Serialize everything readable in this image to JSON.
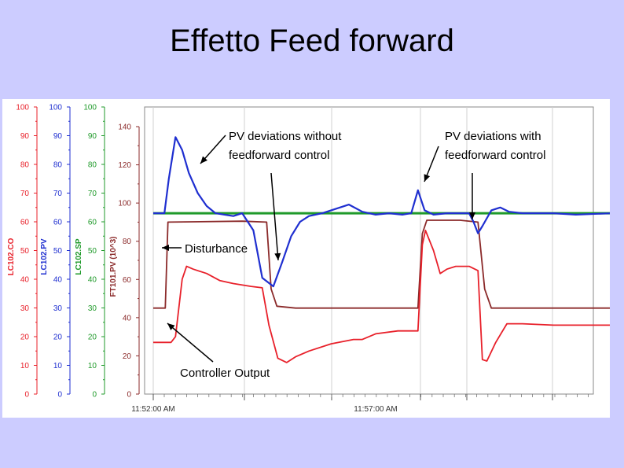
{
  "slide": {
    "title": "Effetto Feed forward"
  },
  "colors": {
    "background": "#ccccff",
    "co": "#e8202a",
    "pv": "#1f2fd0",
    "sp": "#1f9a2a",
    "ft": "#8b2a2a",
    "annotation": "#000000"
  },
  "chart_data": {
    "type": "line",
    "title": "",
    "x_axis": {
      "tick_labels": [
        "11:52:00 AM",
        "11:57:00 AM"
      ],
      "range_minutes": [
        0,
        10
      ]
    },
    "y_axes": [
      {
        "key": "co",
        "label": "LC102.CO",
        "range": [
          0,
          100
        ],
        "ticks": [
          0,
          10,
          20,
          30,
          40,
          50,
          60,
          70,
          80,
          90,
          100
        ]
      },
      {
        "key": "pv",
        "label": "LC102.PV",
        "range": [
          0,
          100
        ],
        "ticks": [
          0,
          10,
          20,
          30,
          40,
          50,
          60,
          70,
          80,
          90,
          100
        ]
      },
      {
        "key": "sp",
        "label": "LC102.SP",
        "range": [
          0,
          100
        ],
        "ticks": [
          0,
          10,
          20,
          30,
          40,
          50,
          60,
          70,
          80,
          90,
          100
        ]
      },
      {
        "key": "ft",
        "label": "FT101.PV (10^3)",
        "range": [
          0,
          140
        ],
        "ticks": [
          0,
          20,
          40,
          60,
          80,
          100,
          120,
          140
        ]
      }
    ],
    "series": [
      {
        "name": "LC102.SP",
        "axis": "sp",
        "color": "#1f9a2a",
        "x": [
          0,
          10.3
        ],
        "y": [
          63,
          63
        ]
      },
      {
        "name": "LC102.PV",
        "axis": "pv",
        "color": "#1f2fd0",
        "x": [
          0,
          0.25,
          0.35,
          0.5,
          0.65,
          0.8,
          1.0,
          1.2,
          1.4,
          1.6,
          1.8,
          2.0,
          2.25,
          2.45,
          2.7,
          2.9,
          3.1,
          3.3,
          3.5,
          3.8,
          4.1,
          4.4,
          4.7,
          5.0,
          5.3,
          5.6,
          5.8,
          5.95,
          6.1,
          6.3,
          6.6,
          6.9,
          7.1,
          7.2,
          7.3,
          7.4,
          7.6,
          7.8,
          8.0,
          8.3,
          8.6,
          9.0,
          9.5,
          10.3
        ],
        "y": [
          63,
          63,
          75,
          89.5,
          85,
          77,
          70,
          65.5,
          63,
          62.5,
          62,
          63,
          57,
          40.5,
          37.5,
          46,
          55,
          60,
          62,
          63,
          64.5,
          66,
          63.5,
          62.5,
          63,
          62.5,
          63,
          71,
          64,
          62.5,
          63,
          63,
          63,
          60,
          56,
          58.5,
          64,
          65,
          63.5,
          63,
          63,
          63,
          62.5,
          63
        ]
      },
      {
        "name": "FT101.PV (10^3)",
        "axis": "ft",
        "color": "#8b2a2a",
        "x": [
          0,
          0.27,
          0.33,
          2.0,
          2.55,
          2.65,
          2.78,
          3.2,
          4.0,
          5.0,
          5.95,
          6.05,
          6.15,
          6.9,
          7.3,
          7.45,
          7.6,
          8.0,
          9.0,
          10.3
        ],
        "y": [
          45,
          45,
          90,
          90.5,
          90,
          55,
          46,
          45,
          45,
          45,
          45,
          84,
          91,
          91,
          90,
          55,
          45,
          45,
          45,
          45
        ]
      },
      {
        "name": "LC102.CO",
        "axis": "co",
        "color": "#e8202a",
        "x": [
          0,
          0.4,
          0.5,
          0.65,
          0.75,
          0.9,
          1.2,
          1.5,
          1.8,
          2.2,
          2.45,
          2.6,
          2.8,
          3.0,
          3.2,
          3.5,
          4.0,
          4.5,
          4.7,
          5.0,
          5.5,
          5.95,
          6.05,
          6.12,
          6.3,
          6.45,
          6.6,
          6.8,
          7.1,
          7.3,
          7.4,
          7.5,
          7.7,
          7.95,
          8.3,
          9.0,
          10.3
        ],
        "y": [
          18,
          18,
          20,
          40,
          44.5,
          43.5,
          42,
          39.5,
          38.5,
          37.5,
          37,
          24,
          12.5,
          11,
          13,
          15,
          17.5,
          19,
          19,
          21,
          22,
          22,
          52,
          57,
          50,
          42,
          43.5,
          44.5,
          44.5,
          43,
          12,
          11.5,
          18,
          24.5,
          24.5,
          24,
          24
        ]
      }
    ],
    "annotations": [
      {
        "text_lines": [
          "PV deviations without",
          "feedforward control"
        ]
      },
      {
        "text_lines": [
          "PV deviations with",
          "feedforward control"
        ]
      },
      {
        "text_lines": [
          "Disturbance"
        ]
      },
      {
        "text_lines": [
          "Controller Output"
        ]
      }
    ]
  }
}
